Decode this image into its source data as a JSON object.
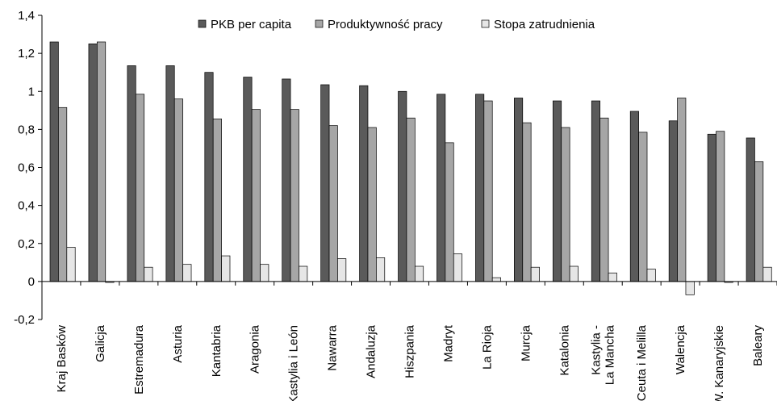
{
  "chart_data": {
    "type": "bar",
    "title": "",
    "xlabel": "",
    "ylabel": "",
    "ylim": [
      -0.2,
      1.4
    ],
    "yticks": [
      "-0,2",
      "0",
      "0,2",
      "0,4",
      "0,6",
      "0,8",
      "1",
      "1,2",
      "1,4"
    ],
    "ytick_values": [
      -0.2,
      0,
      0.2,
      0.4,
      0.6,
      0.8,
      1.0,
      1.2,
      1.4
    ],
    "grid": false,
    "legend_position": "top",
    "categories": [
      "Kraj Basków",
      "Galicja",
      "Estremadura",
      "Asturia",
      "Kantabria",
      "Aragonia",
      "Kastylia i León",
      "Nawarra",
      "Andaluzja",
      "Hiszpania",
      "Madryt",
      "La Rioja",
      "Murcja",
      "Katalonia",
      "Kastylia - La Mancha",
      "Ceuta i Melilla",
      "Walencja",
      "W. Kanaryjskie",
      "Baleary"
    ],
    "category_lines": [
      [
        "Kraj Basków"
      ],
      [
        "Galicja"
      ],
      [
        "Estremadura"
      ],
      [
        "Asturia"
      ],
      [
        "Kantabria"
      ],
      [
        "Aragonia"
      ],
      [
        "Kastylia i León"
      ],
      [
        "Nawarra"
      ],
      [
        "Andaluzja"
      ],
      [
        "Hiszpania"
      ],
      [
        "Madryt"
      ],
      [
        "La Rioja"
      ],
      [
        "Murcja"
      ],
      [
        "Katalonia"
      ],
      [
        "Kastylia -",
        "La Mancha"
      ],
      [
        "Ceuta i Melilla"
      ],
      [
        "Walencja"
      ],
      [
        "W. Kanaryjskie"
      ],
      [
        "Baleary"
      ]
    ],
    "series": [
      {
        "name": "PKB per capita",
        "color": "#5a5a5a",
        "values": [
          1.26,
          1.25,
          1.135,
          1.135,
          1.1,
          1.075,
          1.065,
          1.035,
          1.03,
          1.0,
          0.985,
          0.985,
          0.965,
          0.95,
          0.95,
          0.895,
          0.845,
          0.775,
          0.755
        ]
      },
      {
        "name": "Produktywność pracy",
        "color": "#a6a6a6",
        "values": [
          0.915,
          1.26,
          0.985,
          0.96,
          0.855,
          0.905,
          0.905,
          0.82,
          0.81,
          0.86,
          0.73,
          0.95,
          0.835,
          0.81,
          0.86,
          0.785,
          0.965,
          0.79,
          0.63
        ]
      },
      {
        "name": "Stopa zatrudnienia",
        "color": "#e6e6e6",
        "values": [
          0.18,
          -0.005,
          0.075,
          0.09,
          0.135,
          0.09,
          0.08,
          0.12,
          0.125,
          0.08,
          0.145,
          0.02,
          0.075,
          0.08,
          0.045,
          0.065,
          -0.07,
          -0.005,
          0.075
        ]
      }
    ]
  }
}
